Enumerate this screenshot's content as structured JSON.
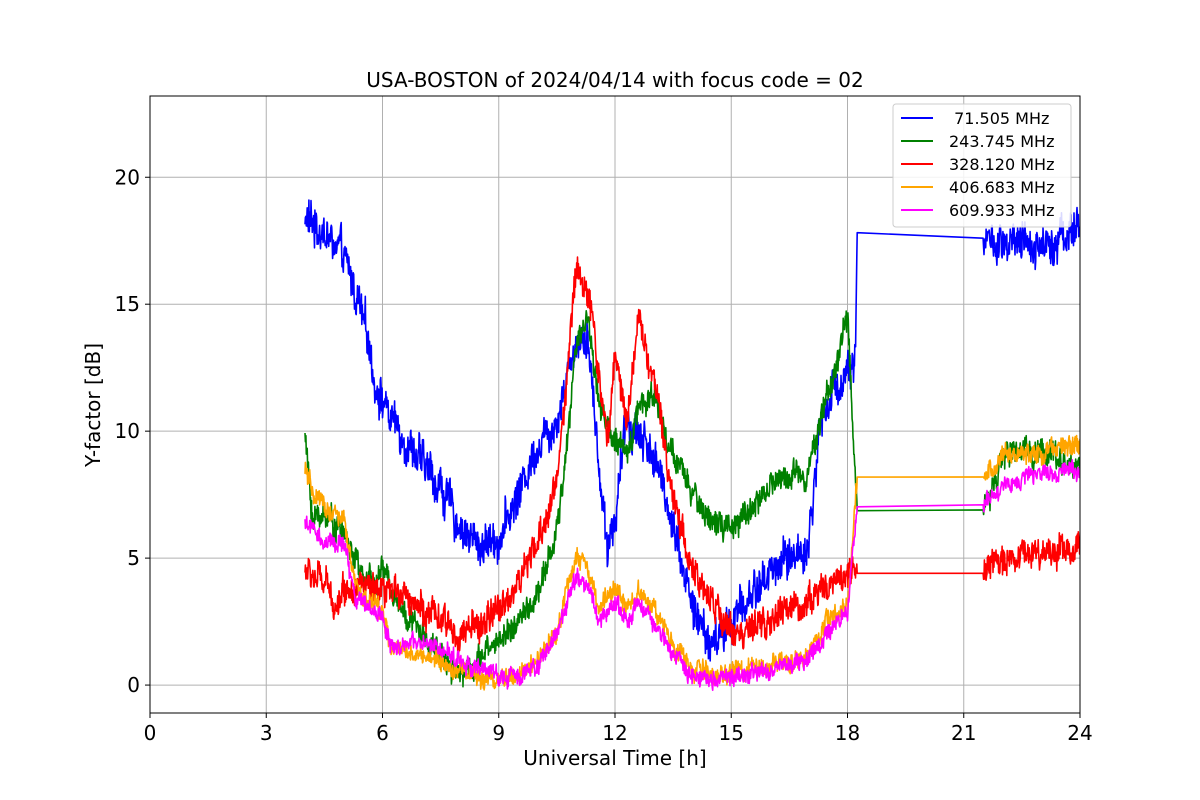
{
  "chart_data": {
    "type": "line",
    "title": "USA-BOSTON of 2024/04/14 with focus code = 02",
    "xlabel": "Universal Time [h]",
    "ylabel": "Y-factor [dB]",
    "xlim": [
      0,
      24
    ],
    "ylim": [
      -1.1,
      23.2
    ],
    "xticks": [
      "0",
      "3",
      "6",
      "9",
      "12",
      "15",
      "18",
      "21",
      "24"
    ],
    "yticks": [
      "0",
      "5",
      "10",
      "15",
      "20"
    ],
    "grid": true,
    "legend_position": "top-right",
    "series": [
      {
        "name": " 71.505 MHz",
        "color": "#0000ff",
        "noise": 0.9,
        "points": [
          [
            4.0,
            18.4
          ],
          [
            4.5,
            17.8
          ],
          [
            5.0,
            16.8
          ],
          [
            5.3,
            15.5
          ],
          [
            5.6,
            13.8
          ],
          [
            5.8,
            12.0
          ],
          [
            6.2,
            10.5
          ],
          [
            6.8,
            9.2
          ],
          [
            7.5,
            7.8
          ],
          [
            8.0,
            6.2
          ],
          [
            8.5,
            5.5
          ],
          [
            9.0,
            5.8
          ],
          [
            9.5,
            7.5
          ],
          [
            10.0,
            9.5
          ],
          [
            10.5,
            10.5
          ],
          [
            10.8,
            12.5
          ],
          [
            11.0,
            13.5
          ],
          [
            11.3,
            14.0
          ],
          [
            11.5,
            10.0
          ],
          [
            11.8,
            5.5
          ],
          [
            12.0,
            6.5
          ],
          [
            12.3,
            10.5
          ],
          [
            12.6,
            10.0
          ],
          [
            13.0,
            9.0
          ],
          [
            13.5,
            6.5
          ],
          [
            14.0,
            3.0
          ],
          [
            14.5,
            1.5
          ],
          [
            15.0,
            2.5
          ],
          [
            15.5,
            3.5
          ],
          [
            16.0,
            4.5
          ],
          [
            16.5,
            5.0
          ],
          [
            17.0,
            5.5
          ],
          [
            17.3,
            10.5
          ],
          [
            17.6,
            11.5
          ],
          [
            17.9,
            12.2
          ],
          [
            18.2,
            13.0
          ],
          [
            18.25,
            17.6
          ],
          [
            21.5,
            17.6
          ],
          [
            22.0,
            17.2
          ],
          [
            23.0,
            17.4
          ],
          [
            24.0,
            18.0
          ]
        ]
      },
      {
        "name": "243.745 MHz",
        "color": "#008000",
        "noise": 0.6,
        "points": [
          [
            4.0,
            9.8
          ],
          [
            4.2,
            6.5
          ],
          [
            4.5,
            6.8
          ],
          [
            5.0,
            6.0
          ],
          [
            5.5,
            4.2
          ],
          [
            5.7,
            4.0
          ],
          [
            6.0,
            4.5
          ],
          [
            6.5,
            3.0
          ],
          [
            7.0,
            2.0
          ],
          [
            7.5,
            1.2
          ],
          [
            8.0,
            0.5
          ],
          [
            8.5,
            1.0
          ],
          [
            9.0,
            1.8
          ],
          [
            9.5,
            2.5
          ],
          [
            10.0,
            3.5
          ],
          [
            10.5,
            6.0
          ],
          [
            10.8,
            10.0
          ],
          [
            11.0,
            13.5
          ],
          [
            11.3,
            14.5
          ],
          [
            11.6,
            11.0
          ],
          [
            12.0,
            9.5
          ],
          [
            12.3,
            9.0
          ],
          [
            12.6,
            11.0
          ],
          [
            13.0,
            11.5
          ],
          [
            13.5,
            9.0
          ],
          [
            14.0,
            7.5
          ],
          [
            14.5,
            6.5
          ],
          [
            15.0,
            6.0
          ],
          [
            15.5,
            7.0
          ],
          [
            16.0,
            7.8
          ],
          [
            16.5,
            8.3
          ],
          [
            17.0,
            8.5
          ],
          [
            17.3,
            10.5
          ],
          [
            17.6,
            12.0
          ],
          [
            18.0,
            14.5
          ],
          [
            18.25,
            6.8
          ],
          [
            21.5,
            6.9
          ],
          [
            22.0,
            9.0
          ],
          [
            23.0,
            9.3
          ],
          [
            24.0,
            8.5
          ]
        ]
      },
      {
        "name": "328.120 MHz",
        "color": "#ff0000",
        "noise": 0.7,
        "points": [
          [
            4.0,
            4.5
          ],
          [
            4.5,
            4.0
          ],
          [
            4.8,
            3.2
          ],
          [
            5.0,
            3.8
          ],
          [
            5.5,
            4.0
          ],
          [
            5.7,
            3.6
          ],
          [
            6.0,
            3.4
          ],
          [
            6.5,
            3.8
          ],
          [
            7.0,
            3.0
          ],
          [
            7.5,
            2.5
          ],
          [
            8.0,
            2.0
          ],
          [
            8.5,
            2.3
          ],
          [
            9.0,
            3.0
          ],
          [
            9.5,
            4.0
          ],
          [
            10.0,
            5.5
          ],
          [
            10.5,
            8.0
          ],
          [
            10.8,
            13.0
          ],
          [
            11.0,
            16.5
          ],
          [
            11.2,
            16.0
          ],
          [
            11.5,
            13.5
          ],
          [
            11.8,
            9.5
          ],
          [
            12.0,
            13.0
          ],
          [
            12.3,
            10.5
          ],
          [
            12.6,
            14.5
          ],
          [
            13.0,
            12.0
          ],
          [
            13.5,
            7.5
          ],
          [
            14.0,
            4.5
          ],
          [
            14.5,
            3.2
          ],
          [
            15.0,
            2.2
          ],
          [
            15.5,
            2.0
          ],
          [
            16.0,
            2.5
          ],
          [
            16.5,
            3.0
          ],
          [
            17.0,
            3.3
          ],
          [
            17.5,
            4.0
          ],
          [
            18.0,
            4.5
          ],
          [
            18.25,
            4.4
          ],
          [
            21.5,
            4.4
          ],
          [
            22.0,
            5.0
          ],
          [
            23.0,
            5.3
          ],
          [
            24.0,
            5.4
          ]
        ]
      },
      {
        "name": "406.683 MHz",
        "color": "#ffa500",
        "noise": 0.45,
        "points": [
          [
            4.0,
            8.5
          ],
          [
            4.2,
            7.5
          ],
          [
            4.5,
            7.0
          ],
          [
            5.0,
            6.5
          ],
          [
            5.3,
            3.8
          ],
          [
            5.7,
            3.2
          ],
          [
            6.0,
            3.0
          ],
          [
            6.2,
            1.4
          ],
          [
            7.0,
            1.2
          ],
          [
            7.5,
            0.9
          ],
          [
            8.0,
            0.6
          ],
          [
            8.5,
            0.3
          ],
          [
            9.0,
            0.2
          ],
          [
            9.5,
            0.3
          ],
          [
            10.0,
            1.0
          ],
          [
            10.5,
            2.2
          ],
          [
            10.8,
            4.0
          ],
          [
            11.0,
            5.0
          ],
          [
            11.3,
            4.5
          ],
          [
            11.6,
            3.0
          ],
          [
            12.0,
            3.8
          ],
          [
            12.3,
            3.0
          ],
          [
            12.6,
            3.8
          ],
          [
            13.0,
            3.0
          ],
          [
            13.5,
            1.5
          ],
          [
            14.0,
            0.6
          ],
          [
            14.5,
            0.4
          ],
          [
            15.0,
            0.5
          ],
          [
            15.5,
            0.6
          ],
          [
            16.0,
            0.8
          ],
          [
            16.5,
            1.0
          ],
          [
            17.0,
            1.2
          ],
          [
            17.5,
            2.5
          ],
          [
            18.0,
            3.0
          ],
          [
            18.25,
            8.1
          ],
          [
            21.5,
            8.2
          ],
          [
            22.0,
            9.0
          ],
          [
            23.0,
            9.2
          ],
          [
            24.0,
            9.5
          ]
        ]
      },
      {
        "name": "609.933 MHz",
        "color": "#ff00ff",
        "noise": 0.4,
        "points": [
          [
            4.0,
            6.5
          ],
          [
            4.5,
            5.5
          ],
          [
            5.0,
            5.6
          ],
          [
            5.3,
            3.5
          ],
          [
            5.7,
            3.0
          ],
          [
            6.0,
            2.7
          ],
          [
            6.2,
            1.6
          ],
          [
            7.0,
            1.6
          ],
          [
            7.5,
            1.4
          ],
          [
            8.0,
            1.0
          ],
          [
            8.5,
            0.6
          ],
          [
            9.0,
            0.4
          ],
          [
            9.5,
            0.3
          ],
          [
            10.0,
            0.8
          ],
          [
            10.5,
            2.0
          ],
          [
            10.8,
            3.5
          ],
          [
            11.0,
            4.2
          ],
          [
            11.3,
            4.0
          ],
          [
            11.6,
            2.5
          ],
          [
            12.0,
            3.2
          ],
          [
            12.3,
            2.5
          ],
          [
            12.6,
            3.2
          ],
          [
            13.0,
            2.5
          ],
          [
            13.5,
            1.2
          ],
          [
            14.0,
            0.4
          ],
          [
            14.5,
            0.3
          ],
          [
            15.0,
            0.3
          ],
          [
            15.5,
            0.4
          ],
          [
            16.0,
            0.6
          ],
          [
            16.5,
            0.8
          ],
          [
            17.0,
            1.0
          ],
          [
            17.5,
            2.2
          ],
          [
            18.0,
            2.8
          ],
          [
            18.25,
            7.0
          ],
          [
            21.5,
            7.1
          ],
          [
            22.0,
            8.0
          ],
          [
            23.0,
            8.3
          ],
          [
            24.0,
            8.5
          ]
        ]
      }
    ]
  }
}
